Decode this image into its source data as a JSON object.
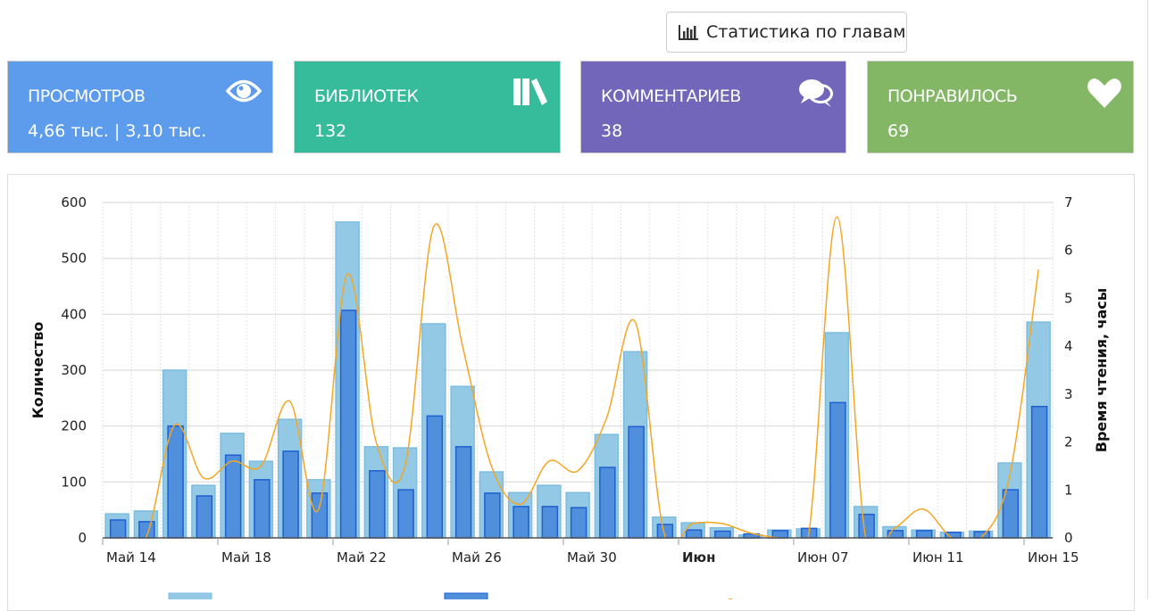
{
  "toolbar": {
    "chapter_stats_label": "Статистика по главам",
    "icon": "bar-chart-icon"
  },
  "cards": [
    {
      "label": "ПРОСМОТРОВ",
      "value": "4,66 тыс. | 3,10 тыс.",
      "icon": "eye-icon",
      "color": "#5d9cec"
    },
    {
      "label": "БИБЛИОТЕК",
      "value": "132",
      "icon": "books-icon",
      "color": "#37bc9b"
    },
    {
      "label": "КОММЕНТАРИЕВ",
      "value": "38",
      "icon": "comments-icon",
      "color": "#7266ba"
    },
    {
      "label": "ПОНРАВИЛОСЬ",
      "value": "69",
      "icon": "heart-icon",
      "color": "#83b765"
    }
  ],
  "chart_data": {
    "type": "bar",
    "x_dates": [
      "05-14",
      "05-15",
      "05-16",
      "05-17",
      "05-18",
      "05-19",
      "05-20",
      "05-21",
      "05-22",
      "05-23",
      "05-24",
      "05-25",
      "05-26",
      "05-27",
      "05-28",
      "05-29",
      "05-30",
      "05-31",
      "06-01",
      "06-02",
      "06-03",
      "06-04",
      "06-05",
      "06-06",
      "06-07",
      "06-08",
      "06-09",
      "06-10",
      "06-11",
      "06-12",
      "06-13",
      "06-14",
      "06-15"
    ],
    "x_tick_labels": [
      "Май 14",
      "Май 18",
      "Май 22",
      "Май 26",
      "Май 30",
      "Июн",
      "Июн 07",
      "Июн 11",
      "Июн 15"
    ],
    "x_tick_every_days": 4,
    "series": [
      {
        "name": "views-light",
        "type": "bar",
        "axis": "left",
        "color": "#93c9e4",
        "values": [
          43,
          48,
          300,
          94,
          187,
          137,
          212,
          104,
          565,
          163,
          161,
          383,
          271,
          118,
          81,
          94,
          81,
          185,
          333,
          37,
          27,
          18,
          5,
          14,
          16,
          367,
          56,
          20,
          14,
          10,
          12,
          134,
          386
        ]
      },
      {
        "name": "views-dark",
        "type": "bar",
        "axis": "left",
        "color": "#4f8fdc",
        "values": [
          32,
          29,
          200,
          75,
          148,
          104,
          155,
          80,
          407,
          120,
          86,
          218,
          163,
          80,
          56,
          56,
          54,
          126,
          199,
          24,
          14,
          12,
          7,
          13,
          17,
          242,
          42,
          13,
          13,
          10,
          11,
          86,
          235
        ]
      },
      {
        "name": "reading-time",
        "type": "line",
        "axis": "right",
        "color": "#f5a623",
        "values": [
          0,
          0,
          2.35,
          1.25,
          1.6,
          1.5,
          2.85,
          0.6,
          5.5,
          2.0,
          1.5,
          6.5,
          4.0,
          1.5,
          0.7,
          1.6,
          1.4,
          2.5,
          4.5,
          0.1,
          0.3,
          0.3,
          0.1,
          0,
          0,
          6.7,
          0,
          0.2,
          0.6,
          0,
          0,
          1.3,
          5.6
        ]
      }
    ],
    "y_left": {
      "label": "Количество",
      "min": 0,
      "max": 600,
      "ticks": [
        "0",
        "100",
        "200",
        "300",
        "400",
        "500",
        "600"
      ]
    },
    "y_right": {
      "label": "Время чтения, часы",
      "min": 0,
      "max": 7,
      "ticks": [
        "0",
        "1",
        "2",
        "3",
        "4",
        "5",
        "6",
        "7"
      ]
    },
    "grid": true,
    "legend": "bottom"
  }
}
